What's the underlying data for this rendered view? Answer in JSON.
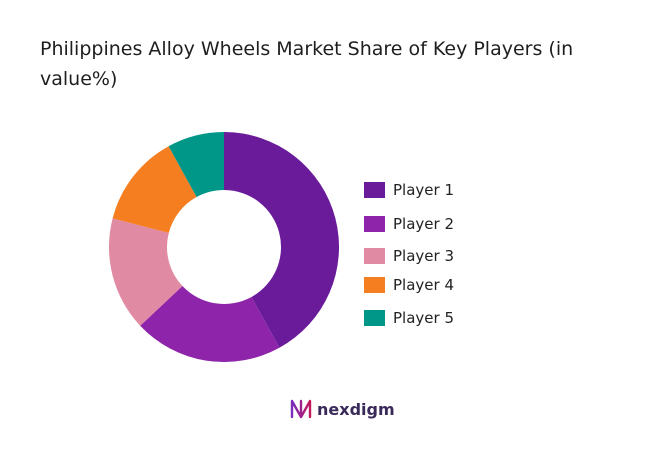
{
  "title": "Philippines Alloy Wheels Market Share of Key Players (in value%)",
  "brand": {
    "name": "nexdigm"
  },
  "chart_data": {
    "type": "pie",
    "donut": true,
    "title": "Philippines Alloy Wheels Market Share of Key Players (in value%)",
    "categories": [
      "Player 1",
      "Player 2",
      "Player 3",
      "Player 4",
      "Player 5"
    ],
    "values": [
      42,
      21,
      16,
      13,
      8
    ],
    "colors": [
      "#6a1b9a",
      "#8e24aa",
      "#e08aa3",
      "#f57f20",
      "#009688"
    ],
    "legend": "right"
  }
}
